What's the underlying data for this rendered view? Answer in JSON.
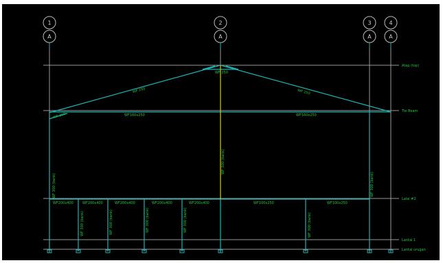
{
  "colors": {
    "background": "#000000",
    "grid_line": "#9a9a9a",
    "member": "#1fb3b3",
    "label_green": "#22c93a",
    "column_center": "#c9c930",
    "bubble": "#bdbdbd"
  },
  "grid_bubbles": [
    {
      "number": "1",
      "letter": "A"
    },
    {
      "number": "2",
      "letter": "A"
    },
    {
      "number": "3",
      "letter": "A"
    },
    {
      "number": "4",
      "letter": "A"
    }
  ],
  "levels": [
    {
      "label": "Atap (top)"
    },
    {
      "label": "Tie Beam"
    },
    {
      "label": "Lalai #2"
    },
    {
      "label": "Lantai 1"
    },
    {
      "label": "Lantai urugan"
    }
  ],
  "members": {
    "rafter_left": "WF 250",
    "rafter_right": "WF 250",
    "ridge": "WF 250",
    "eave_left": "WF 300",
    "tie_left": "WF160x250",
    "tie_right": "WF160x250",
    "col_left": "WF 300 (bank)",
    "col_center": "WF 300 (bank)",
    "col_right": "WF 300 (bank)",
    "beams": [
      "WF200x400",
      "WF200x400",
      "WF200x400",
      "WF200x400",
      "WF200x400",
      "WF100x250",
      "WF100x250"
    ],
    "sub_cols": [
      "WF 300 (bank)",
      "WF 300 (bank)",
      "WF 300 (bank)",
      "WF 300 (bank)",
      "WF 300 (bank)"
    ]
  }
}
